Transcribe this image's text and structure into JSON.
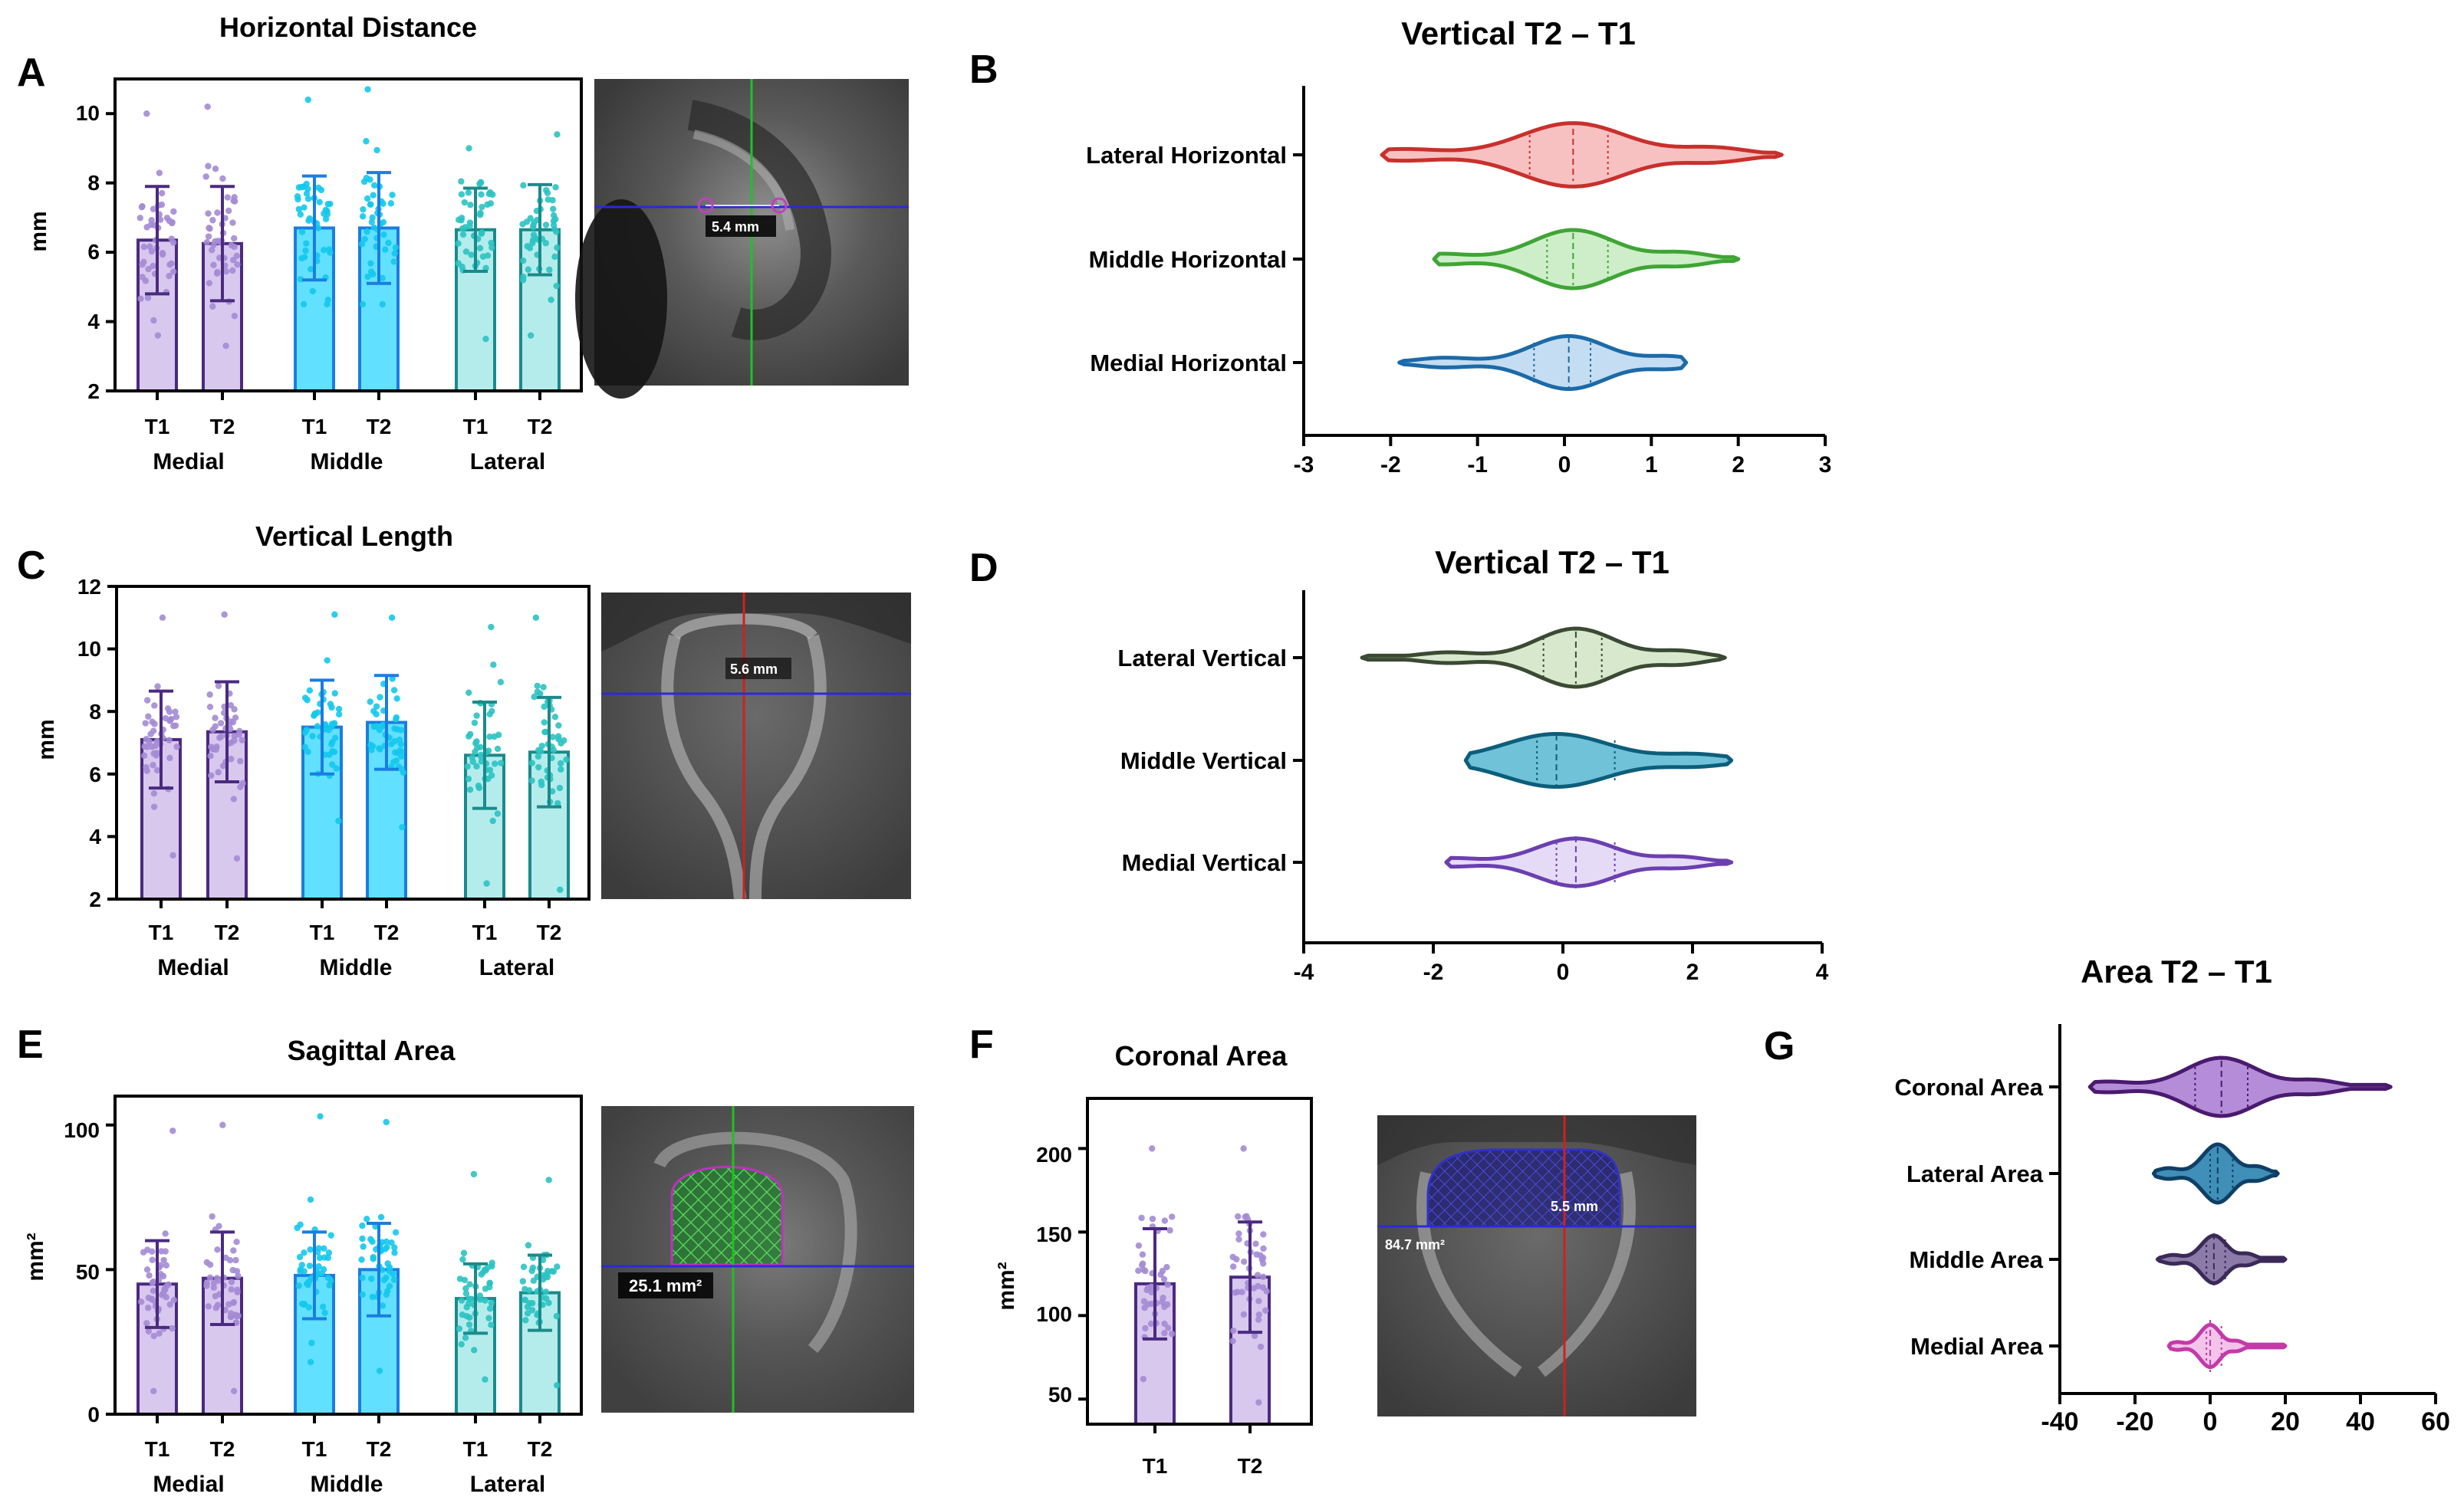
{
  "panels": {
    "A": {
      "letter": "A",
      "title": "Horizontal Distance",
      "ylabel": "mm",
      "yticks": [
        "2",
        "4",
        "6",
        "8",
        "10"
      ],
      "group_labels": [
        "Medial",
        "Middle",
        "Lateral"
      ],
      "bar_labels": [
        "T1",
        "T2",
        "T1",
        "T2",
        "T1",
        "T2"
      ],
      "image_measure": "5.4 mm"
    },
    "B": {
      "letter": "B",
      "title": "Vertical T2 – T1",
      "xticks": [
        "-3",
        "-2",
        "-1",
        "0",
        "1",
        "2",
        "3"
      ]
    },
    "C": {
      "letter": "C",
      "title": "Vertical Length",
      "ylabel": "mm",
      "yticks": [
        "2",
        "4",
        "6",
        "8",
        "10",
        "12"
      ],
      "group_labels": [
        "Medial",
        "Middle",
        "Lateral"
      ],
      "bar_labels": [
        "T1",
        "T2",
        "T1",
        "T2",
        "T1",
        "T2"
      ],
      "image_measure": "5.6 mm"
    },
    "D": {
      "letter": "D",
      "title": "Vertical T2 – T1",
      "xticks": [
        "-4",
        "-2",
        "0",
        "2",
        "4"
      ]
    },
    "E": {
      "letter": "E",
      "title": "Sagittal Area",
      "ylabel": "mm²",
      "yticks": [
        "0",
        "50",
        "100"
      ],
      "group_labels": [
        "Medial",
        "Middle",
        "Lateral"
      ],
      "bar_labels": [
        "T1",
        "T2",
        "T1",
        "T2",
        "T1",
        "T2"
      ],
      "image_measure": "25.1 mm²"
    },
    "F": {
      "letter": "F",
      "title": "Coronal Area",
      "ylabel": "mm²",
      "yticks": [
        "50",
        "100",
        "150",
        "200"
      ],
      "bar_labels": [
        "T1",
        "T2"
      ],
      "image_measure_1": "5.5 mm",
      "image_measure_2": "84.7 mm²"
    },
    "G": {
      "letter": "G",
      "title": "Area T2 – T1",
      "xticks": [
        "-40",
        "-20",
        "0",
        "20",
        "40",
        "60"
      ]
    }
  },
  "colors": {
    "medial_fill": "#d9c8ee",
    "medial_stroke": "#4b2a80",
    "medial_dot": "#a48bd4",
    "middle_fill": "#62e0ff",
    "middle_stroke": "#1a7de0",
    "middle_dot": "#14c8ec",
    "lateral_fill": "#b4ecec",
    "lateral_stroke": "#1b8a8a",
    "lateral_dot": "#2cc2c2",
    "err": "#333333"
  },
  "chart_data": [
    {
      "id": "A",
      "type": "bar",
      "title": "Horizontal Distance",
      "ylabel": "mm",
      "ylim": [
        2,
        11
      ],
      "categories": [
        "Medial T1",
        "Medial T2",
        "Middle T1",
        "Middle T2",
        "Lateral T1",
        "Lateral T2"
      ],
      "values": [
        6.35,
        6.25,
        6.7,
        6.7,
        6.65,
        6.65
      ],
      "sd": [
        1.55,
        1.65,
        1.5,
        1.6,
        1.2,
        1.3
      ],
      "min": [
        3.6,
        3.3,
        4.5,
        4.5,
        3.5,
        3.6
      ],
      "max": [
        10.0,
        10.2,
        10.4,
        10.7,
        9.0,
        9.4
      ]
    },
    {
      "id": "B",
      "type": "violin",
      "title": "Vertical T2 – T1",
      "xlim": [
        -3,
        3
      ],
      "series": [
        {
          "name": "Lateral Horizontal",
          "color": "#c9302c",
          "fill": "#f7c1c1",
          "min": -2.1,
          "max": 2.5,
          "median": 0.1,
          "q1": -0.4,
          "q3": 0.5,
          "peak": 0.6
        },
        {
          "name": "Middle Horizontal",
          "color": "#3fa535",
          "fill": "#cdeec8",
          "min": -1.5,
          "max": 2.0,
          "median": 0.1,
          "q1": -0.2,
          "q3": 0.5,
          "peak": 0.55
        },
        {
          "name": "Medial Horizontal",
          "color": "#1c6aa8",
          "fill": "#c4ddf2",
          "min": -1.9,
          "max": 1.4,
          "median": 0.05,
          "q1": -0.35,
          "q3": 0.3,
          "peak": 0.5
        }
      ]
    },
    {
      "id": "C",
      "type": "bar",
      "title": "Vertical Length",
      "ylabel": "mm",
      "ylim": [
        2,
        12
      ],
      "categories": [
        "Medial T1",
        "Medial T2",
        "Middle T1",
        "Middle T2",
        "Lateral T1",
        "Lateral T2"
      ],
      "values": [
        7.1,
        7.35,
        7.5,
        7.65,
        6.6,
        6.7
      ],
      "sd": [
        1.55,
        1.6,
        1.5,
        1.5,
        1.7,
        1.75
      ],
      "min": [
        3.4,
        3.3,
        4.5,
        4.3,
        2.5,
        2.3
      ],
      "max": [
        11.0,
        11.1,
        11.1,
        11.0,
        10.7,
        11.0
      ]
    },
    {
      "id": "D",
      "type": "violin",
      "title": "Vertical T2 – T1",
      "xlim": [
        -4,
        4
      ],
      "series": [
        {
          "name": "Lateral Vertical",
          "color": "#3a4a33",
          "fill": "#d8e8cc",
          "min": -3.1,
          "max": 2.5,
          "median": 0.2,
          "q1": -0.3,
          "q3": 0.6,
          "peak": 0.55
        },
        {
          "name": "Middle Vertical",
          "color": "#0d5e7a",
          "fill": "#6fc2d8",
          "min": -1.5,
          "max": 2.6,
          "median": -0.1,
          "q1": -0.4,
          "q3": 0.8,
          "peak": 0.5
        },
        {
          "name": "Medial Vertical",
          "color": "#6b3fb0",
          "fill": "#e6dbf6",
          "min": -1.8,
          "max": 2.6,
          "median": 0.2,
          "q1": -0.1,
          "q3": 0.8,
          "peak": 0.45
        }
      ]
    },
    {
      "id": "E",
      "type": "bar",
      "title": "Sagittal Area",
      "ylabel": "mm²",
      "ylim": [
        0,
        110
      ],
      "categories": [
        "Medial T1",
        "Medial T2",
        "Middle T1",
        "Middle T2",
        "Lateral T1",
        "Lateral T2"
      ],
      "values": [
        45,
        47,
        48,
        50,
        40,
        42
      ],
      "sd": [
        15,
        16,
        15,
        16,
        12,
        13
      ],
      "min": [
        8,
        8,
        18,
        15,
        12,
        10
      ],
      "max": [
        98,
        100,
        103,
        101,
        83,
        81
      ]
    },
    {
      "id": "F",
      "type": "bar",
      "title": "Coronal Area",
      "ylabel": "mm²",
      "ylim": [
        35,
        230
      ],
      "categories": [
        "T1",
        "T2"
      ],
      "values": [
        119,
        123
      ],
      "sd": [
        33,
        33
      ],
      "min": [
        62,
        48
      ],
      "max": [
        200,
        200
      ]
    },
    {
      "id": "G",
      "type": "violin",
      "title": "Area T2 – T1",
      "xlim": [
        -40,
        60
      ],
      "series": [
        {
          "name": "Coronal Area",
          "color": "#4a1a6e",
          "fill": "#b48cd8",
          "min": -32,
          "max": 48,
          "median": 3,
          "q1": -4,
          "q3": 10,
          "peak": 0.55
        },
        {
          "name": "Lateral Area",
          "color": "#0f3f66",
          "fill": "#3f8fb8",
          "min": -15,
          "max": 18,
          "median": 2,
          "q1": 0,
          "q3": 6,
          "peak": 0.55
        },
        {
          "name": "Middle Area",
          "color": "#3b2a58",
          "fill": "#8c7aa8",
          "min": -14,
          "max": 20,
          "median": 1,
          "q1": -1,
          "q3": 4,
          "peak": 0.45
        },
        {
          "name": "Medial Area",
          "color": "#c43aa8",
          "fill": "#f2c4ea",
          "min": -11,
          "max": 20,
          "median": 0,
          "q1": -1,
          "q3": 3,
          "peak": 0.4
        }
      ]
    }
  ]
}
